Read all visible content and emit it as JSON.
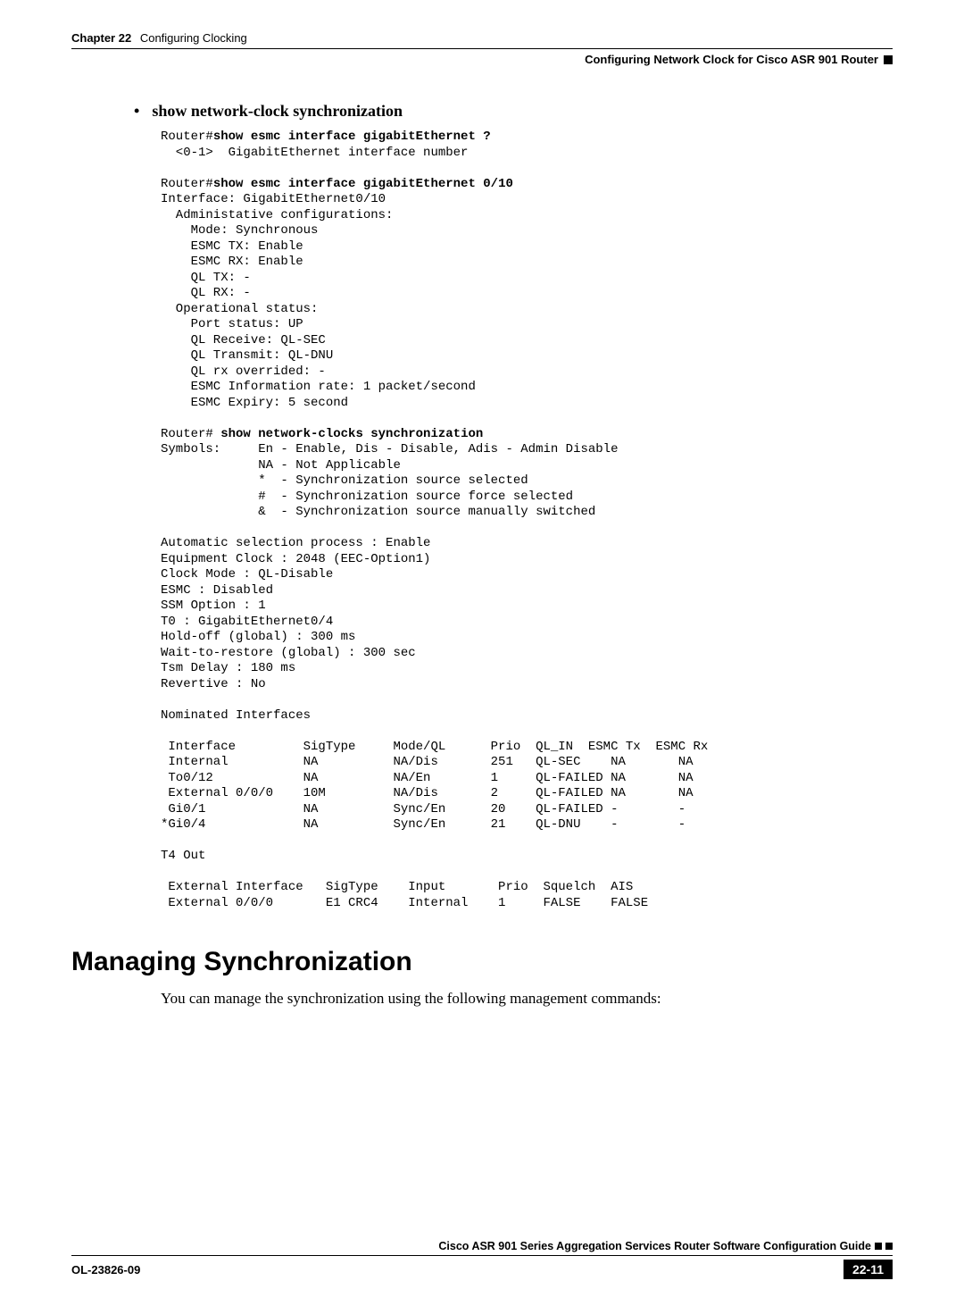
{
  "header": {
    "chapter_label": "Chapter 22",
    "chapter_title": "Configuring Clocking",
    "section_title": "Configuring Network Clock for Cisco ASR 901 Router"
  },
  "bullet_heading": "show network-clock synchronization",
  "cli": {
    "line1_prompt": "Router#",
    "line1_cmd": "show esmc interface gigabitEthernet ?",
    "line2": "  <0-1>  GigabitEthernet interface number",
    "line3_prompt": "Router#",
    "line3_cmd": "show esmc interface gigabitEthernet 0/10",
    "block1": "Interface: GigabitEthernet0/10\n  Administative configurations:\n    Mode: Synchronous\n    ESMC TX: Enable\n    ESMC RX: Enable\n    QL TX: -\n    QL RX: -\n  Operational status:\n    Port status: UP\n    QL Receive: QL-SEC\n    QL Transmit: QL-DNU\n    QL rx overrided: -\n    ESMC Information rate: 1 packet/second\n    ESMC Expiry: 5 second",
    "line4_prompt": "Router# ",
    "line4_cmd": "show network-clocks synchronization",
    "block2": "Symbols:     En - Enable, Dis - Disable, Adis - Admin Disable\n             NA - Not Applicable\n             *  - Synchronization source selected\n             #  - Synchronization source force selected\n             &  - Synchronization source manually switched\n\nAutomatic selection process : Enable\nEquipment Clock : 2048 (EEC-Option1)\nClock Mode : QL-Disable\nESMC : Disabled\nSSM Option : 1\nT0 : GigabitEthernet0/4\nHold-off (global) : 300 ms\nWait-to-restore (global) : 300 sec\nTsm Delay : 180 ms\nRevertive : No\n\nNominated Interfaces\n\n Interface         SigType     Mode/QL      Prio  QL_IN  ESMC Tx  ESMC Rx\n Internal          NA          NA/Dis       251   QL-SEC    NA       NA\n To0/12            NA          NA/En        1     QL-FAILED NA       NA\n External 0/0/0    10M         NA/Dis       2     QL-FAILED NA       NA\n Gi0/1             NA          Sync/En      20    QL-FAILED -        -\n*Gi0/4             NA          Sync/En      21    QL-DNU    -        -\n\nT4 Out\n\n External Interface   SigType    Input       Prio  Squelch  AIS\n External 0/0/0       E1 CRC4    Internal    1     FALSE    FALSE"
  },
  "section_heading": "Managing Synchronization",
  "body_text": "You can manage the synchronization using the following management commands:",
  "footer": {
    "book_title": "Cisco ASR 901 Series Aggregation Services Router Software Configuration Guide",
    "doc_id": "OL-23826-09",
    "page_num": "22-11"
  }
}
